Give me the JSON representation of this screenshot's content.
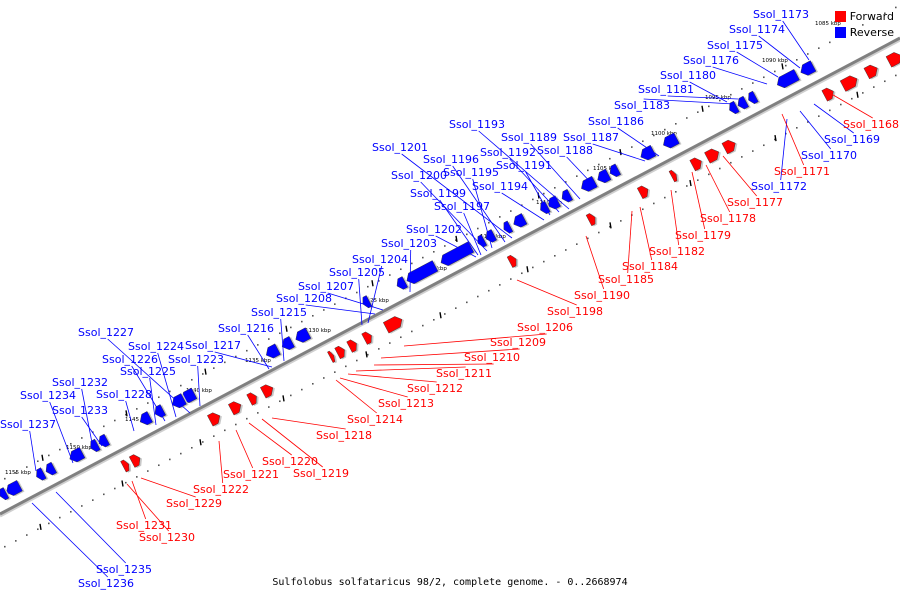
{
  "legend": {
    "forward": {
      "label": "Forward",
      "color": "#ff0000"
    },
    "reverse": {
      "label": "Reverse",
      "color": "#0000ff"
    }
  },
  "caption": "Sulfolobus solfataricus 98/2, complete genome. - 0..2668974",
  "colors": {
    "axis": "#808080",
    "forward_leader": "#ff0000",
    "reverse_leader": "#0000ff"
  },
  "scale_labels": [
    "1085 kbp",
    "1090 kbp",
    "1095 kbp",
    "1100 kbp",
    "1105 kbp",
    "1110 kbp",
    "1115 kbp",
    "1120 kbp",
    "1125 kbp",
    "1130 kbp",
    "1135 kbp",
    "1140 kbp",
    "1145 kbp",
    "1150 kbp",
    "1155 kbp"
  ],
  "reverse_genes": [
    "Ssol_1173",
    "Ssol_1174",
    "Ssol_1175",
    "Ssol_1176",
    "Ssol_1180",
    "Ssol_1181",
    "Ssol_1183",
    "Ssol_1186",
    "Ssol_1187",
    "Ssol_1188",
    "Ssol_1189",
    "Ssol_1193",
    "Ssol_1192",
    "Ssol_1191",
    "Ssol_1201",
    "Ssol_1196",
    "Ssol_1195",
    "Ssol_1200",
    "Ssol_1194",
    "Ssol_1199",
    "Ssol_1197",
    "Ssol_1202",
    "Ssol_1203",
    "Ssol_1204",
    "Ssol_1205",
    "Ssol_1207",
    "Ssol_1208",
    "Ssol_1215",
    "Ssol_1216",
    "Ssol_1217",
    "Ssol_1227",
    "Ssol_1224",
    "Ssol_1226",
    "Ssol_1223",
    "Ssol_1225",
    "Ssol_1232",
    "Ssol_1234",
    "Ssol_1228",
    "Ssol_1233",
    "Ssol_1237",
    "Ssol_1169",
    "Ssol_1170",
    "Ssol_1172",
    "Ssol_1235",
    "Ssol_1236"
  ],
  "forward_genes": [
    "Ssol_1168",
    "Ssol_1171",
    "Ssol_1177",
    "Ssol_1178",
    "Ssol_1179",
    "Ssol_1182",
    "Ssol_1184",
    "Ssol_1185",
    "Ssol_1190",
    "Ssol_1198",
    "Ssol_1206",
    "Ssol_1209",
    "Ssol_1210",
    "Ssol_1211",
    "Ssol_1212",
    "Ssol_1213",
    "Ssol_1214",
    "Ssol_1218",
    "Ssol_1220",
    "Ssol_1219",
    "Ssol_1221",
    "Ssol_1222",
    "Ssol_1229",
    "Ssol_1231",
    "Ssol_1230"
  ]
}
